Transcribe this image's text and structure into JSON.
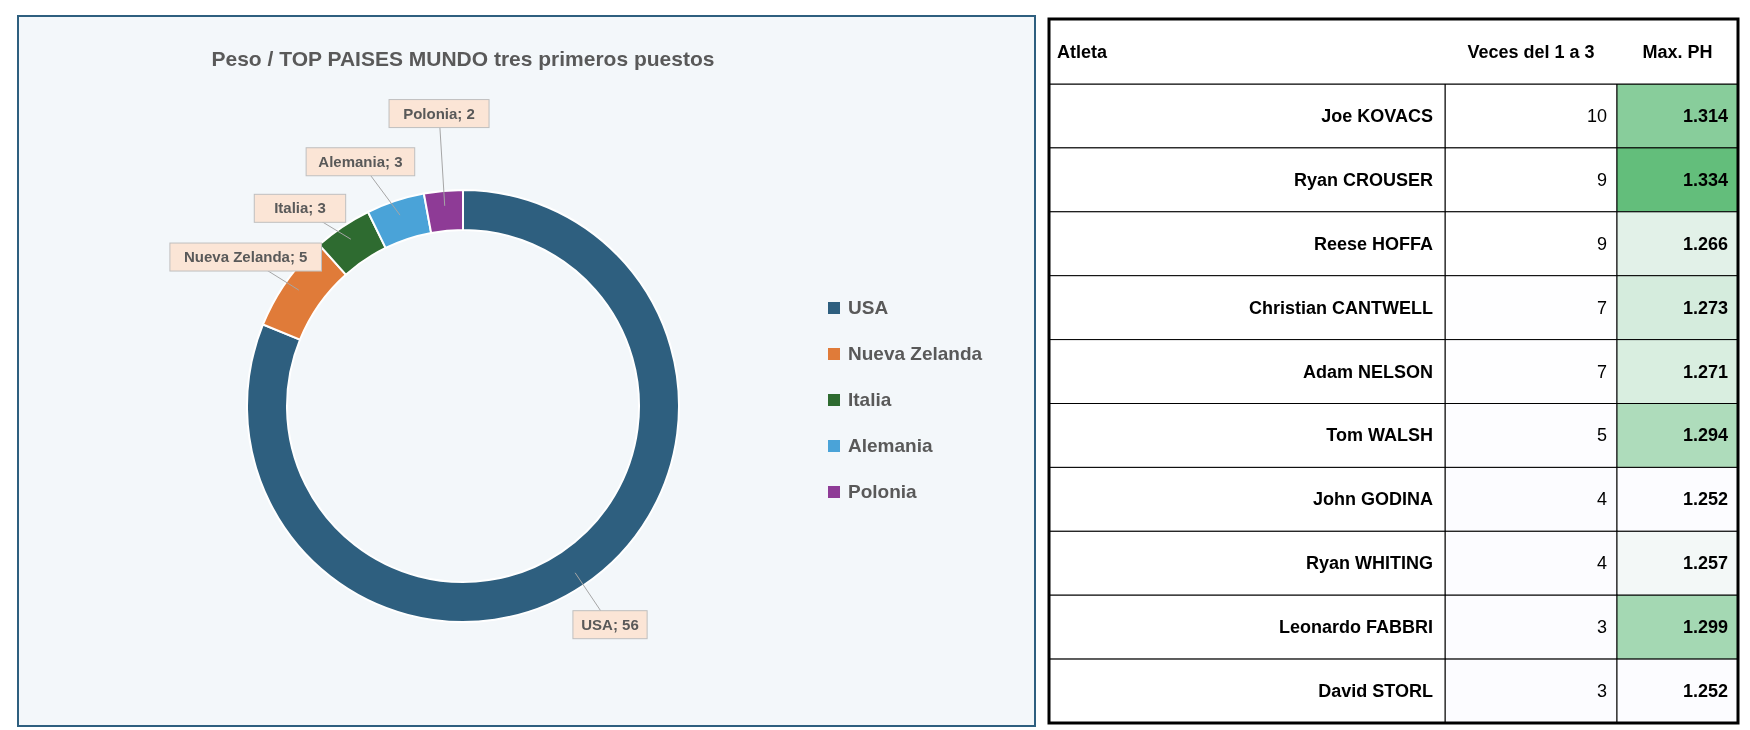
{
  "chart_data": [
    {
      "type": "donut",
      "title": "Peso / TOP PAISES MUNDO tres primeros puestos",
      "categories": [
        "USA",
        "Nueva Zelanda",
        "Italia",
        "Alemania",
        "Polonia"
      ],
      "values": [
        56,
        5,
        3,
        3,
        2
      ],
      "colors": [
        "#2e5f7f",
        "#e07b39",
        "#2e6b30",
        "#4aa3d8",
        "#8e3b96"
      ],
      "value_labels": [
        "USA; 56",
        "Nueva Zelanda; 5",
        "Italia; 3",
        "Alemania; 3",
        "Polonia; 2"
      ],
      "legend": "right"
    },
    {
      "type": "heatmap",
      "ylabel": "Atleta",
      "categories": [
        "Veces del 1 a 3",
        "Max. PH"
      ],
      "y_categories": [
        "Joe KOVACS",
        "Ryan CROUSER",
        "Reese HOFFA",
        "Christian CANTWELL",
        "Adam NELSON",
        "Tom WALSH",
        "John GODINA",
        "Ryan WHITING",
        "Leonardo FABBRI",
        "David STORL"
      ],
      "cells": [
        [
          10,
          1.314
        ],
        [
          9,
          1.334
        ],
        [
          9,
          1.266
        ],
        [
          7,
          1.273
        ],
        [
          7,
          1.271
        ],
        [
          5,
          1.294
        ],
        [
          4,
          1.252
        ],
        [
          4,
          1.257
        ],
        [
          3,
          1.299
        ],
        [
          3,
          1.252
        ]
      ],
      "data_labels": true,
      "colors": [
        "#ffffff",
        "#63be7b"
      ]
    }
  ]
}
